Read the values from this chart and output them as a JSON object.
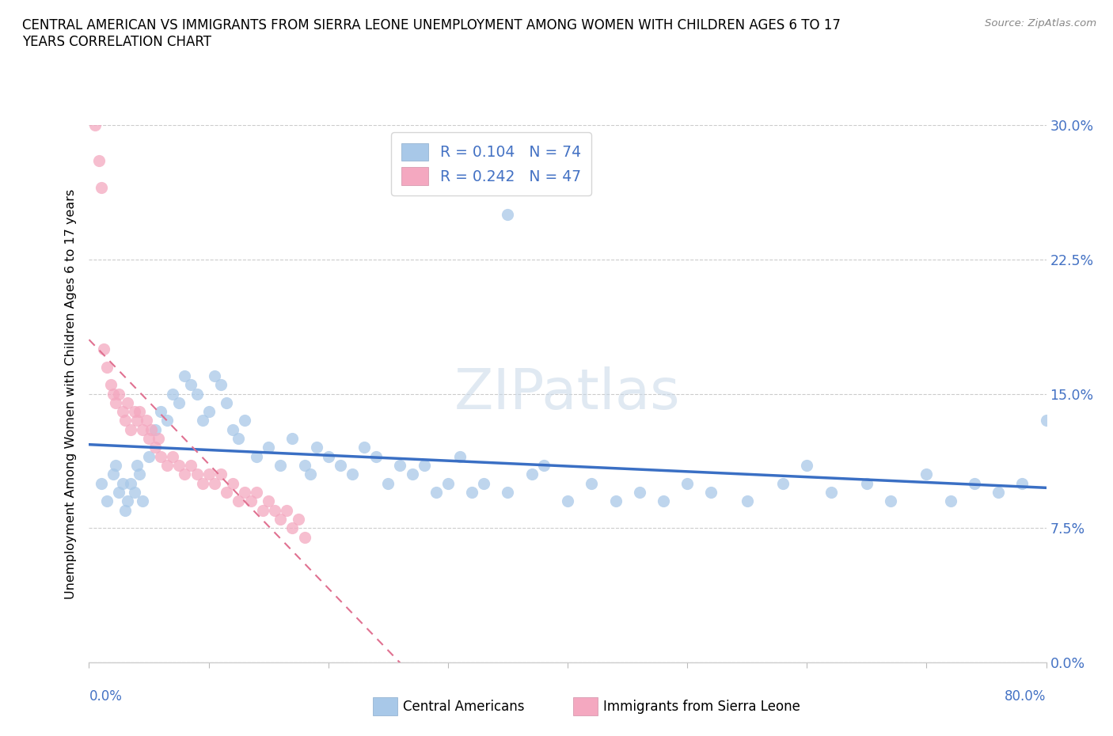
{
  "title": "CENTRAL AMERICAN VS IMMIGRANTS FROM SIERRA LEONE UNEMPLOYMENT AMONG WOMEN WITH CHILDREN AGES 6 TO 17\nYEARS CORRELATION CHART",
  "source": "Source: ZipAtlas.com",
  "ylabel": "Unemployment Among Women with Children Ages 6 to 17 years",
  "yticks": [
    "0.0%",
    "7.5%",
    "15.0%",
    "22.5%",
    "30.0%"
  ],
  "ytick_vals": [
    0.0,
    7.5,
    15.0,
    22.5,
    30.0
  ],
  "xlim": [
    0.0,
    80.0
  ],
  "ylim": [
    0.0,
    30.0
  ],
  "color_blue": "#A8C8E8",
  "color_pink": "#F4A8C0",
  "line_blue": "#3A6FC4",
  "line_pink": "#E07090",
  "watermark": "ZIPatlas",
  "ca_x": [
    1.0,
    1.5,
    2.0,
    2.2,
    2.5,
    2.8,
    3.0,
    3.2,
    3.5,
    3.8,
    4.0,
    4.2,
    4.5,
    5.0,
    5.5,
    6.0,
    6.5,
    7.0,
    7.5,
    8.0,
    8.5,
    9.0,
    9.5,
    10.0,
    10.5,
    11.0,
    11.5,
    12.0,
    12.5,
    13.0,
    14.0,
    15.0,
    16.0,
    17.0,
    18.0,
    18.5,
    19.0,
    20.0,
    21.0,
    22.0,
    23.0,
    24.0,
    25.0,
    26.0,
    27.0,
    28.0,
    29.0,
    30.0,
    31.0,
    32.0,
    33.0,
    35.0,
    37.0,
    38.0,
    40.0,
    42.0,
    44.0,
    46.0,
    48.0,
    50.0,
    52.0,
    55.0,
    58.0,
    60.0,
    62.0,
    65.0,
    67.0,
    70.0,
    72.0,
    74.0,
    76.0,
    78.0,
    80.0,
    35.0
  ],
  "ca_y": [
    10.0,
    9.0,
    10.5,
    11.0,
    9.5,
    10.0,
    8.5,
    9.0,
    10.0,
    9.5,
    11.0,
    10.5,
    9.0,
    11.5,
    13.0,
    14.0,
    13.5,
    15.0,
    14.5,
    16.0,
    15.5,
    15.0,
    13.5,
    14.0,
    16.0,
    15.5,
    14.5,
    13.0,
    12.5,
    13.5,
    11.5,
    12.0,
    11.0,
    12.5,
    11.0,
    10.5,
    12.0,
    11.5,
    11.0,
    10.5,
    12.0,
    11.5,
    10.0,
    11.0,
    10.5,
    11.0,
    9.5,
    10.0,
    11.5,
    9.5,
    10.0,
    9.5,
    10.5,
    11.0,
    9.0,
    10.0,
    9.0,
    9.5,
    9.0,
    10.0,
    9.5,
    9.0,
    10.0,
    11.0,
    9.5,
    10.0,
    9.0,
    10.5,
    9.0,
    10.0,
    9.5,
    10.0,
    13.5,
    25.0
  ],
  "sl_x": [
    0.5,
    0.8,
    1.0,
    1.2,
    1.5,
    1.8,
    2.0,
    2.2,
    2.5,
    2.8,
    3.0,
    3.2,
    3.5,
    3.8,
    4.0,
    4.2,
    4.5,
    4.8,
    5.0,
    5.2,
    5.5,
    5.8,
    6.0,
    6.5,
    7.0,
    7.5,
    8.0,
    8.5,
    9.0,
    9.5,
    10.0,
    10.5,
    11.0,
    11.5,
    12.0,
    12.5,
    13.0,
    13.5,
    14.0,
    14.5,
    15.0,
    15.5,
    16.0,
    16.5,
    17.0,
    17.5,
    18.0
  ],
  "sl_y": [
    30.0,
    28.0,
    26.5,
    17.5,
    16.5,
    15.5,
    15.0,
    14.5,
    15.0,
    14.0,
    13.5,
    14.5,
    13.0,
    14.0,
    13.5,
    14.0,
    13.0,
    13.5,
    12.5,
    13.0,
    12.0,
    12.5,
    11.5,
    11.0,
    11.5,
    11.0,
    10.5,
    11.0,
    10.5,
    10.0,
    10.5,
    10.0,
    10.5,
    9.5,
    10.0,
    9.0,
    9.5,
    9.0,
    9.5,
    8.5,
    9.0,
    8.5,
    8.0,
    8.5,
    7.5,
    8.0,
    7.0
  ]
}
